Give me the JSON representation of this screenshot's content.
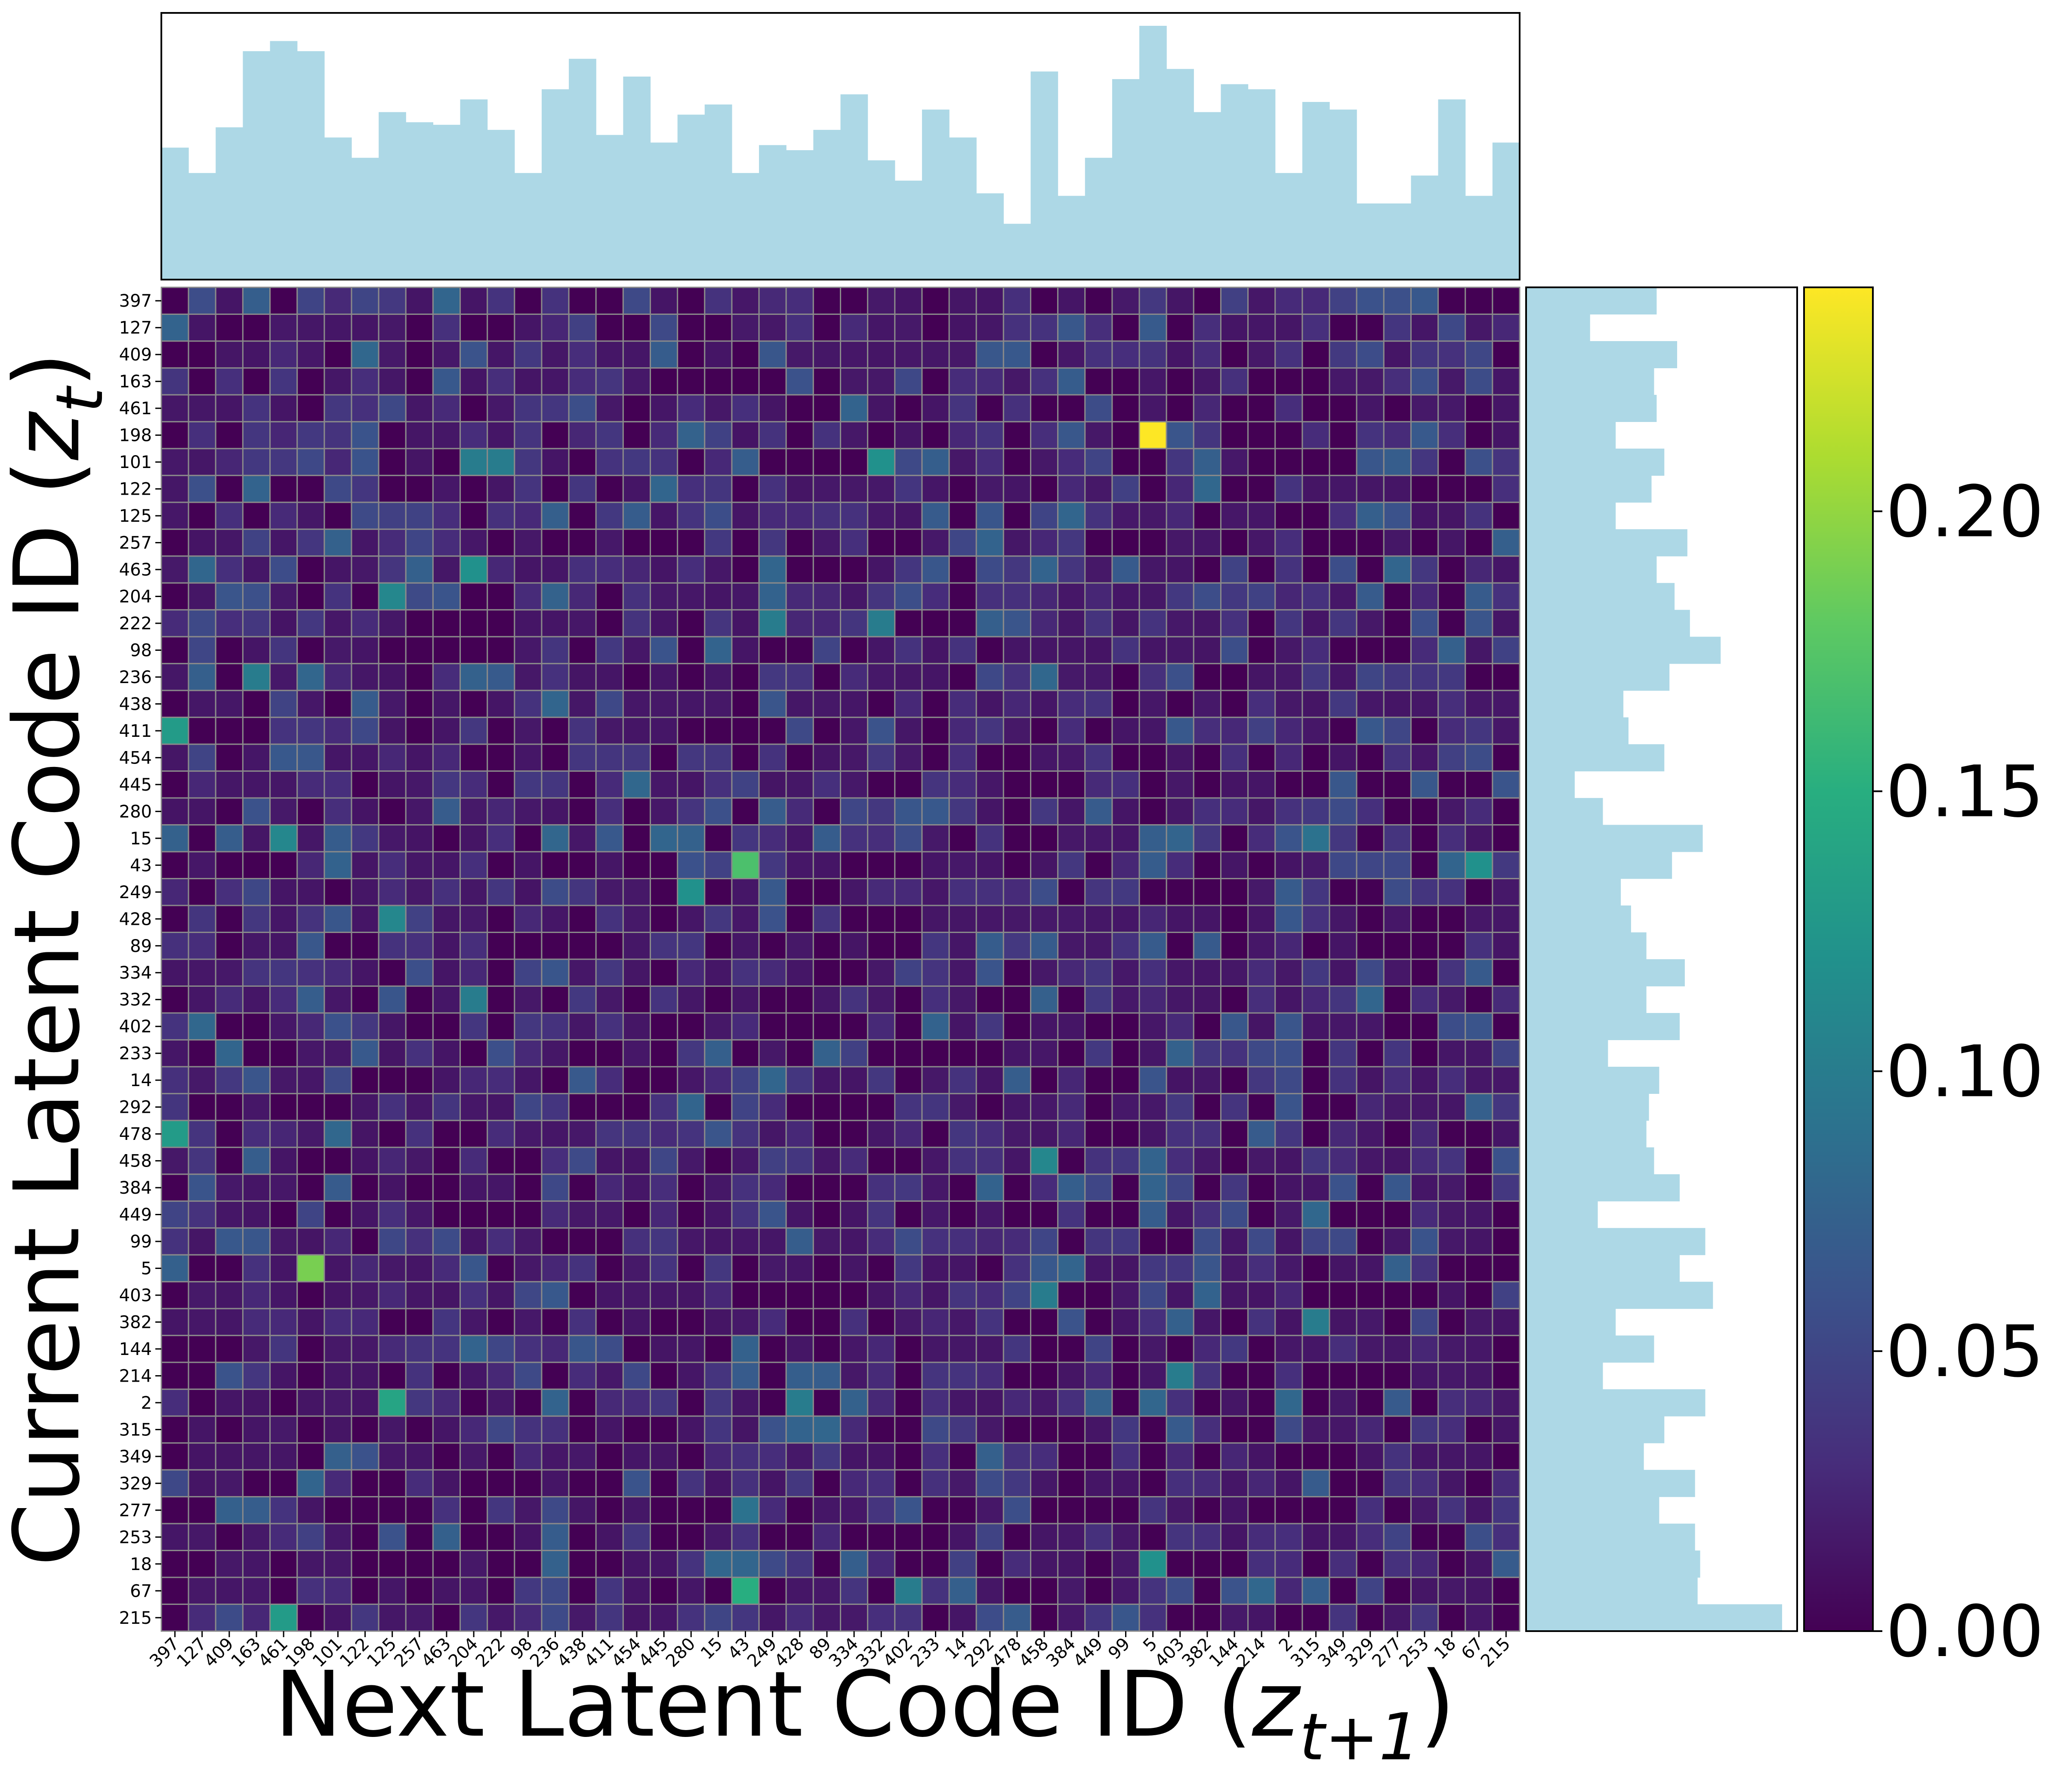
{
  "chart_data": {
    "type": "heatmap",
    "xlabel_main": "Next Latent Code ID (",
    "xlabel_var": "z",
    "xlabel_sub": "t+1",
    "xlabel_close": ")",
    "ylabel_main": "Current Latent Code ID (",
    "ylabel_var": "z",
    "ylabel_sub": "t",
    "ylabel_close": ")",
    "categories": [
      "397",
      "127",
      "409",
      "163",
      "461",
      "198",
      "101",
      "122",
      "125",
      "257",
      "463",
      "204",
      "222",
      "98",
      "236",
      "438",
      "411",
      "454",
      "445",
      "280",
      "15",
      "43",
      "249",
      "428",
      "89",
      "334",
      "332",
      "402",
      "233",
      "14",
      "292",
      "478",
      "458",
      "384",
      "449",
      "99",
      "5",
      "403",
      "382",
      "144",
      "214",
      "2",
      "315",
      "349",
      "329",
      "277",
      "253",
      "18",
      "67",
      "215"
    ],
    "colorbar": {
      "ticks": [
        0.0,
        0.05,
        0.1,
        0.15,
        0.2
      ],
      "tick_labels": [
        "0.00",
        "0.05",
        "0.10",
        "0.15",
        "0.20"
      ],
      "range": [
        0.0,
        0.24
      ],
      "colormap": "viridis"
    },
    "highlights": [
      {
        "row": "198",
        "col": "5",
        "value": 0.24
      },
      {
        "row": "5",
        "col": "198",
        "value": 0.19
      },
      {
        "row": "43",
        "col": "43",
        "value": 0.17
      },
      {
        "row": "67",
        "col": "43",
        "value": 0.15
      },
      {
        "row": "2",
        "col": "125",
        "value": 0.14
      },
      {
        "row": "411",
        "col": "397",
        "value": 0.13
      },
      {
        "row": "478",
        "col": "397",
        "value": 0.13
      },
      {
        "row": "215",
        "col": "461",
        "value": 0.13
      },
      {
        "row": "43",
        "col": "67",
        "value": 0.12
      },
      {
        "row": "101",
        "col": "332",
        "value": 0.12
      },
      {
        "row": "463",
        "col": "204",
        "value": 0.12
      },
      {
        "row": "249",
        "col": "280",
        "value": 0.12
      },
      {
        "row": "18",
        "col": "5",
        "value": 0.12
      },
      {
        "row": "15",
        "col": "461",
        "value": 0.11
      },
      {
        "row": "458",
        "col": "458",
        "value": 0.11
      },
      {
        "row": "403",
        "col": "458",
        "value": 0.1
      },
      {
        "row": "214",
        "col": "403",
        "value": 0.1
      },
      {
        "row": "236",
        "col": "163",
        "value": 0.1
      },
      {
        "row": "204",
        "col": "125",
        "value": 0.11
      },
      {
        "row": "428",
        "col": "125",
        "value": 0.11
      },
      {
        "row": "2",
        "col": "428",
        "value": 0.1
      },
      {
        "row": "67",
        "col": "402",
        "value": 0.1
      },
      {
        "row": "101",
        "col": "204",
        "value": 0.1
      },
      {
        "row": "101",
        "col": "222",
        "value": 0.1
      },
      {
        "row": "222",
        "col": "249",
        "value": 0.1
      },
      {
        "row": "222",
        "col": "332",
        "value": 0.1
      },
      {
        "row": "382",
        "col": "315",
        "value": 0.1
      },
      {
        "row": "15",
        "col": "315",
        "value": 0.09
      },
      {
        "row": "332",
        "col": "204",
        "value": 0.1
      },
      {
        "row": "277",
        "col": "43",
        "value": 0.09
      }
    ],
    "col_marginal": [
      0.52,
      0.42,
      0.6,
      0.9,
      0.94,
      0.9,
      0.56,
      0.48,
      0.66,
      0.62,
      0.61,
      0.71,
      0.59,
      0.42,
      0.75,
      0.87,
      0.57,
      0.8,
      0.54,
      0.65,
      0.69,
      0.42,
      0.53,
      0.51,
      0.59,
      0.73,
      0.47,
      0.39,
      0.67,
      0.56,
      0.34,
      0.22,
      0.82,
      0.33,
      0.48,
      0.79,
      1.0,
      0.83,
      0.66,
      0.77,
      0.75,
      0.42,
      0.7,
      0.67,
      0.3,
      0.3,
      0.41,
      0.71,
      0.33,
      0.54
    ],
    "row_marginal": [
      0.51,
      0.25,
      0.59,
      0.5,
      0.51,
      0.35,
      0.54,
      0.49,
      0.35,
      0.63,
      0.51,
      0.58,
      0.64,
      0.76,
      0.56,
      0.38,
      0.4,
      0.54,
      0.19,
      0.3,
      0.69,
      0.57,
      0.37,
      0.41,
      0.47,
      0.62,
      0.47,
      0.6,
      0.32,
      0.52,
      0.48,
      0.47,
      0.5,
      0.6,
      0.28,
      0.7,
      0.6,
      0.73,
      0.35,
      0.5,
      0.3,
      0.7,
      0.54,
      0.46,
      0.66,
      0.52,
      0.66,
      0.68,
      0.67,
      1.0
    ]
  }
}
